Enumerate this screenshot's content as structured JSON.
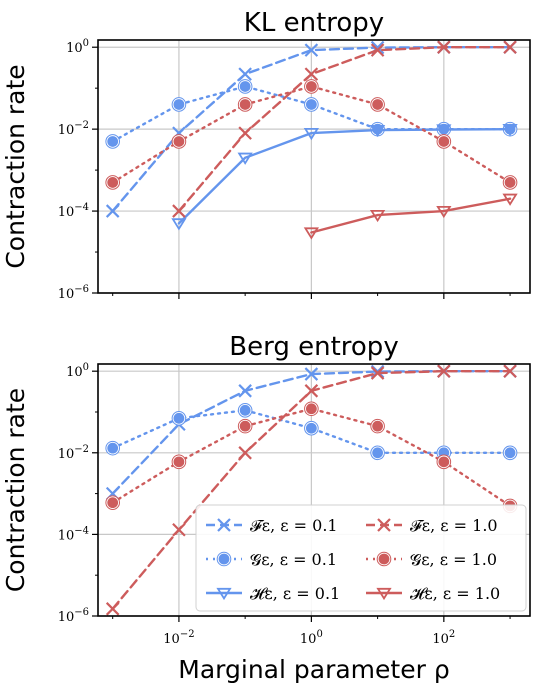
{
  "colors": {
    "blue": "#6495ED",
    "red": "#CD5C5C"
  },
  "figure": {
    "xlabel": "Marginal parameter ρ",
    "ylabel": "Contraction rate"
  },
  "chart_data": [
    {
      "type": "line",
      "title": "KL entropy",
      "ylabel": "Contraction rate",
      "xscale": "log",
      "yscale": "log",
      "xlim": [
        0.0006,
        2000
      ],
      "ylim": [
        1e-06,
        1.5
      ],
      "x": [
        0.001,
        0.01,
        0.1,
        1,
        10,
        100,
        1000
      ],
      "xticks": [
        {
          "base": "10",
          "exp": "−2"
        },
        {
          "base": "10",
          "exp": "0"
        },
        {
          "base": "10",
          "exp": "2"
        }
      ],
      "yticks": [
        {
          "base": "10",
          "exp": "0"
        },
        {
          "base": "10",
          "exp": "−2"
        },
        {
          "base": "10",
          "exp": "−4"
        },
        {
          "base": "10",
          "exp": "−6"
        }
      ],
      "grid": true,
      "series": [
        {
          "name": "𝓕ε, ε = 0.1",
          "color": "blue",
          "style": "dashed",
          "marker": "x",
          "values": [
            0.0001,
            0.008,
            0.22,
            0.85,
            0.98,
            1.0,
            1.0
          ]
        },
        {
          "name": "𝓖ε, ε = 0.1",
          "color": "blue",
          "style": "dotted",
          "marker": "o",
          "values": [
            0.005,
            0.04,
            0.11,
            0.04,
            0.01,
            0.01,
            0.01
          ]
        },
        {
          "name": "𝓗ε, ε = 0.1",
          "color": "blue",
          "style": "solid",
          "marker": "v",
          "values": [
            null,
            5e-05,
            0.002,
            0.008,
            0.0095,
            0.0098,
            0.01
          ]
        },
        {
          "name": "𝓕ε, ε = 1.0",
          "color": "red",
          "style": "dashed",
          "marker": "x",
          "values": [
            null,
            0.0001,
            0.008,
            0.22,
            0.85,
            1.0,
            1.0
          ]
        },
        {
          "name": "𝓖ε, ε = 1.0",
          "color": "red",
          "style": "dotted",
          "marker": "o",
          "values": [
            0.0005,
            0.005,
            0.04,
            0.11,
            0.04,
            0.005,
            0.0005
          ]
        },
        {
          "name": "𝓗ε, ε = 1.0",
          "color": "red",
          "style": "solid",
          "marker": "v",
          "values": [
            null,
            null,
            null,
            3e-05,
            8e-05,
            0.0001,
            0.0002
          ]
        }
      ]
    },
    {
      "type": "line",
      "title": "Berg entropy",
      "ylabel": "Contraction rate",
      "xlabel": "Marginal parameter ρ",
      "xscale": "log",
      "yscale": "log",
      "xlim": [
        0.0006,
        2000
      ],
      "ylim": [
        1e-06,
        1.5
      ],
      "x": [
        0.001,
        0.01,
        0.1,
        1,
        10,
        100,
        1000
      ],
      "xticks": [
        {
          "base": "10",
          "exp": "−2"
        },
        {
          "base": "10",
          "exp": "0"
        },
        {
          "base": "10",
          "exp": "2"
        }
      ],
      "yticks": [
        {
          "base": "10",
          "exp": "0"
        },
        {
          "base": "10",
          "exp": "−2"
        },
        {
          "base": "10",
          "exp": "−4"
        },
        {
          "base": "10",
          "exp": "−6"
        }
      ],
      "grid": true,
      "legend": {
        "placement": "lower-right",
        "entries": [
          {
            "label": "𝓕ε, ε = 0.1",
            "color": "blue",
            "style": "dashed",
            "marker": "x"
          },
          {
            "label": "𝓕ε, ε = 1.0",
            "color": "red",
            "style": "dashed",
            "marker": "x"
          },
          {
            "label": "𝓖ε, ε = 0.1",
            "color": "blue",
            "style": "dotted",
            "marker": "o"
          },
          {
            "label": "𝓖ε, ε = 1.0",
            "color": "red",
            "style": "dotted",
            "marker": "o"
          },
          {
            "label": "𝓗ε, ε = 0.1",
            "color": "blue",
            "style": "solid",
            "marker": "v"
          },
          {
            "label": "𝓗ε, ε = 1.0",
            "color": "red",
            "style": "solid",
            "marker": "v"
          }
        ]
      },
      "series": [
        {
          "name": "𝓕ε, ε = 0.1",
          "color": "blue",
          "style": "dashed",
          "marker": "x",
          "values": [
            0.001,
            0.05,
            0.33,
            0.85,
            0.98,
            1.0,
            1.0
          ]
        },
        {
          "name": "𝓖ε, ε = 0.1",
          "color": "blue",
          "style": "dotted",
          "marker": "o",
          "values": [
            0.013,
            0.07,
            0.11,
            0.04,
            0.01,
            0.01,
            0.01
          ]
        },
        {
          "name": "𝓗ε, ε = 0.1",
          "color": "blue",
          "style": "solid",
          "marker": "v",
          "values": [
            null,
            null,
            null,
            null,
            null,
            null,
            null
          ]
        },
        {
          "name": "𝓕ε, ε = 1.0",
          "color": "red",
          "style": "dashed",
          "marker": "x",
          "values": [
            1.5e-06,
            0.00013,
            0.01,
            0.33,
            0.9,
            1.0,
            1.0
          ]
        },
        {
          "name": "𝓖ε, ε = 1.0",
          "color": "red",
          "style": "dotted",
          "marker": "o",
          "values": [
            0.0006,
            0.006,
            0.045,
            0.12,
            0.045,
            0.006,
            0.0005
          ]
        },
        {
          "name": "𝓗ε, ε = 1.0",
          "color": "red",
          "style": "solid",
          "marker": "v",
          "values": [
            null,
            null,
            null,
            null,
            null,
            null,
            null
          ]
        }
      ]
    }
  ]
}
